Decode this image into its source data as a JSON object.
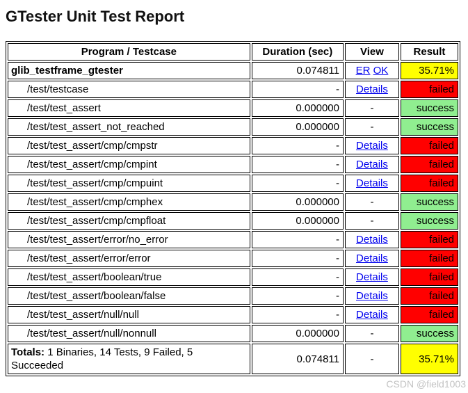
{
  "page": {
    "title": "GTester Unit Test Report",
    "watermark": "CSDN @field1003"
  },
  "colors": {
    "success": "#90ee90",
    "failed": "#ff0000",
    "percent": "#ffff00",
    "link": "#0000ee"
  },
  "table": {
    "headers": [
      "Program / Testcase",
      "Duration (sec)",
      "View",
      "Result"
    ],
    "rows": [
      {
        "name": "glib_testframe_gtester",
        "kind": "program",
        "duration": "0.074811",
        "links": [
          "ER",
          "OK"
        ],
        "view": "",
        "result": "35.71%",
        "status": "percent"
      },
      {
        "name": "/test/testcase",
        "kind": "testcase",
        "duration": "-",
        "links": [
          "Details"
        ],
        "view": "",
        "result": "failed",
        "status": "failed"
      },
      {
        "name": "/test/test_assert",
        "kind": "testcase",
        "duration": "0.000000",
        "links": [],
        "view": "-",
        "result": "success",
        "status": "success"
      },
      {
        "name": "/test/test_assert_not_reached",
        "kind": "testcase",
        "duration": "0.000000",
        "links": [],
        "view": "-",
        "result": "success",
        "status": "success"
      },
      {
        "name": "/test/test_assert/cmp/cmpstr",
        "kind": "testcase",
        "duration": "-",
        "links": [
          "Details"
        ],
        "view": "",
        "result": "failed",
        "status": "failed"
      },
      {
        "name": "/test/test_assert/cmp/cmpint",
        "kind": "testcase",
        "duration": "-",
        "links": [
          "Details"
        ],
        "view": "",
        "result": "failed",
        "status": "failed"
      },
      {
        "name": "/test/test_assert/cmp/cmpuint",
        "kind": "testcase",
        "duration": "-",
        "links": [
          "Details"
        ],
        "view": "",
        "result": "failed",
        "status": "failed"
      },
      {
        "name": "/test/test_assert/cmp/cmphex",
        "kind": "testcase",
        "duration": "0.000000",
        "links": [],
        "view": "-",
        "result": "success",
        "status": "success"
      },
      {
        "name": "/test/test_assert/cmp/cmpfloat",
        "kind": "testcase",
        "duration": "0.000000",
        "links": [],
        "view": "-",
        "result": "success",
        "status": "success"
      },
      {
        "name": "/test/test_assert/error/no_error",
        "kind": "testcase",
        "duration": "-",
        "links": [
          "Details"
        ],
        "view": "",
        "result": "failed",
        "status": "failed"
      },
      {
        "name": "/test/test_assert/error/error",
        "kind": "testcase",
        "duration": "-",
        "links": [
          "Details"
        ],
        "view": "",
        "result": "failed",
        "status": "failed"
      },
      {
        "name": "/test/test_assert/boolean/true",
        "kind": "testcase",
        "duration": "-",
        "links": [
          "Details"
        ],
        "view": "",
        "result": "failed",
        "status": "failed"
      },
      {
        "name": "/test/test_assert/boolean/false",
        "kind": "testcase",
        "duration": "-",
        "links": [
          "Details"
        ],
        "view": "",
        "result": "failed",
        "status": "failed"
      },
      {
        "name": "/test/test_assert/null/null",
        "kind": "testcase",
        "duration": "-",
        "links": [
          "Details"
        ],
        "view": "",
        "result": "failed",
        "status": "failed"
      },
      {
        "name": "/test/test_assert/null/nonnull",
        "kind": "testcase",
        "duration": "0.000000",
        "links": [],
        "view": "-",
        "result": "success",
        "status": "success"
      }
    ],
    "totals": {
      "label": "Totals:",
      "summary": "1 Binaries, 14 Tests, 9 Failed, 5 Succeeded",
      "duration": "0.074811",
      "view": "-",
      "result": "35.71%",
      "status": "percent"
    }
  }
}
